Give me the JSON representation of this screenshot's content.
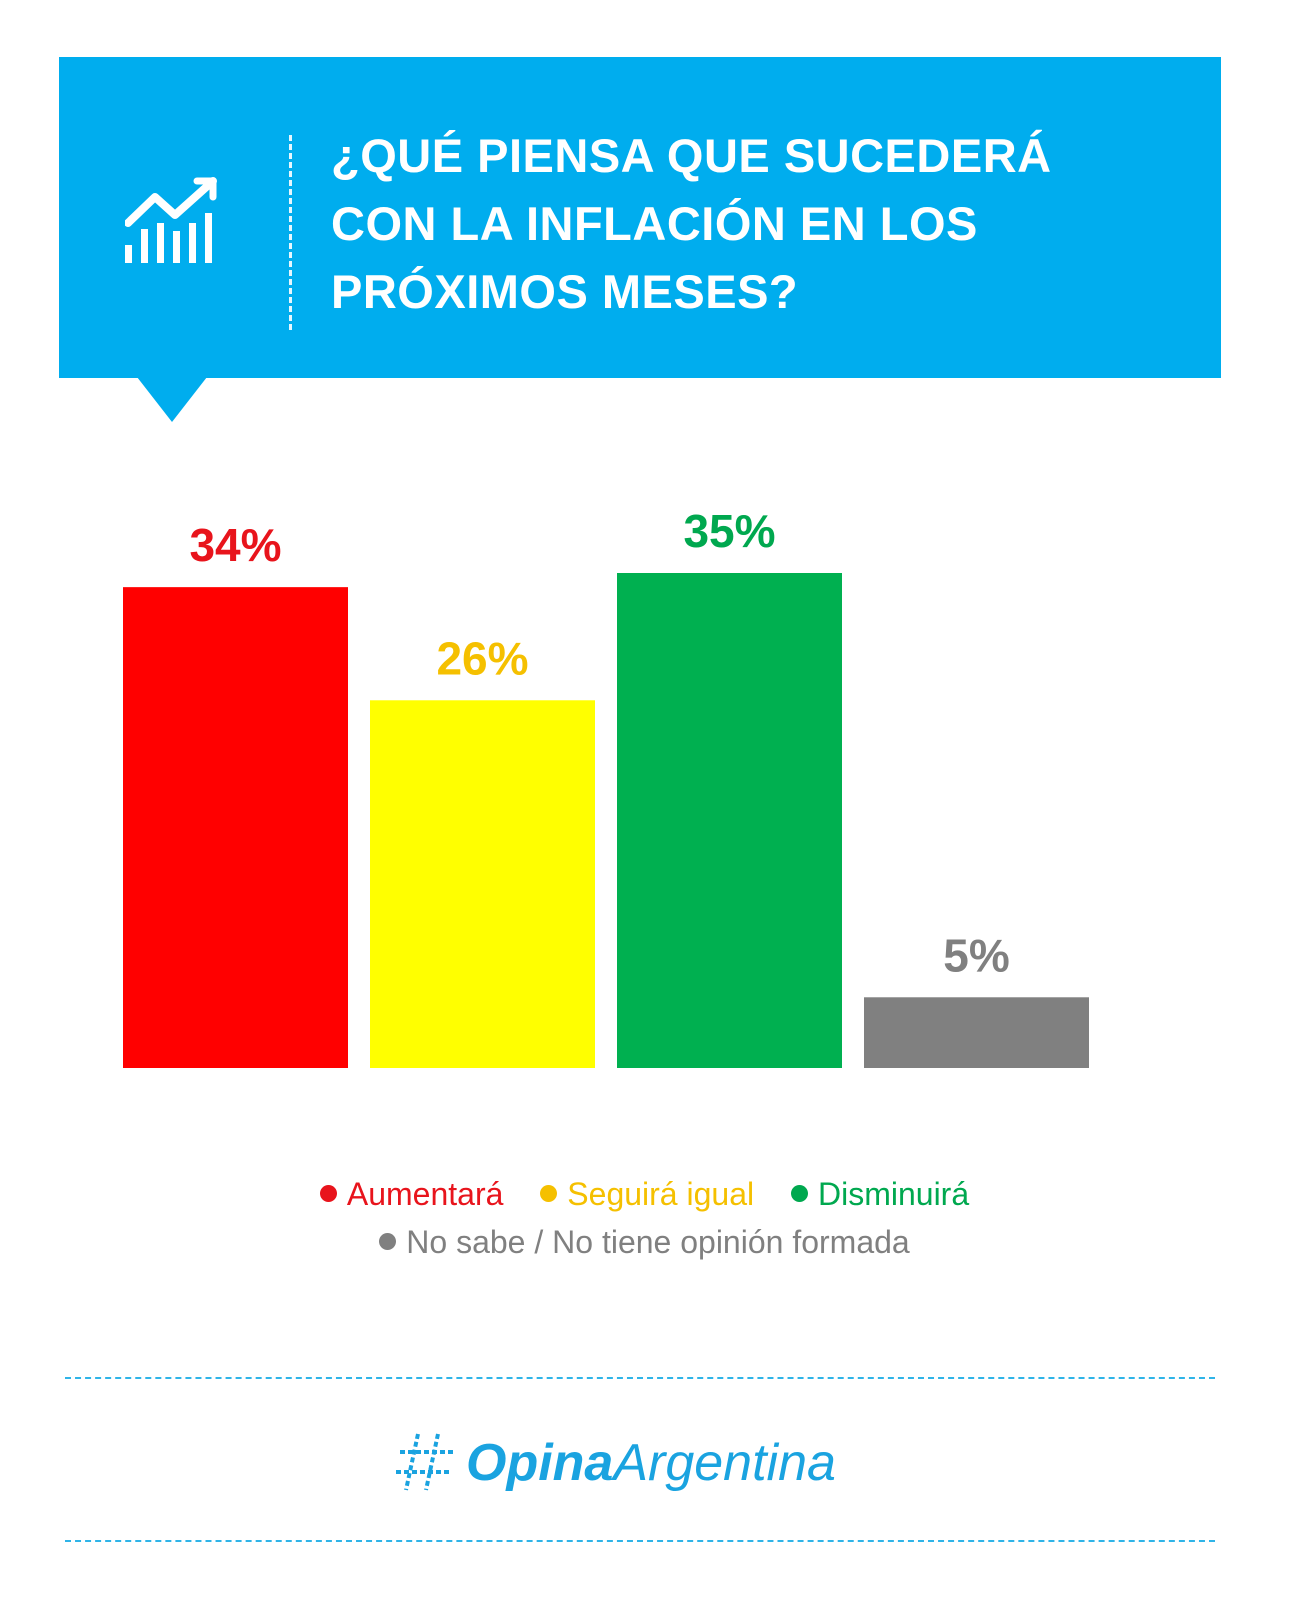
{
  "header": {
    "title": "¿QUÉ PIENSA QUE SUCEDERÁ\nCON LA INFLACIÓN EN LOS\nPRÓXIMOS MESES?",
    "icon": "trend-chart-icon",
    "background_color": "#00adee"
  },
  "chart_data": {
    "type": "bar",
    "title": "¿QUÉ PIENSA QUE SUCEDERÁ CON LA INFLACIÓN EN LOS PRÓXIMOS MESES?",
    "categories": [
      "Aumentará",
      "Seguirá igual",
      "Disminuirá",
      "No sabe / No tiene opinión formada"
    ],
    "values": [
      34,
      26,
      35,
      5
    ],
    "labels": [
      "34%",
      "26%",
      "35%",
      "5%"
    ],
    "colors": [
      "#ff0000",
      "#ffff00",
      "#00b050",
      "#808080"
    ],
    "label_colors": [
      "#e8141c",
      "#f5c000",
      "#00a84f",
      "#808080"
    ],
    "unit": "%",
    "ylim": [
      0,
      35
    ],
    "grid": false,
    "legend_position": "bottom"
  },
  "legend": {
    "items": [
      {
        "label": "Aumentará",
        "color": "#e8141c"
      },
      {
        "label": "Seguirá igual",
        "color": "#f5c000"
      },
      {
        "label": "Disminuirá",
        "color": "#00a84f"
      },
      {
        "label": "No sabe / No tiene opinión formada",
        "color": "#808080"
      }
    ]
  },
  "footer": {
    "brand_bold": "Opina",
    "brand_regular": "Argentina",
    "logo_icon": "hashtag-logo-icon",
    "brand_color": "#1aa3e0"
  }
}
